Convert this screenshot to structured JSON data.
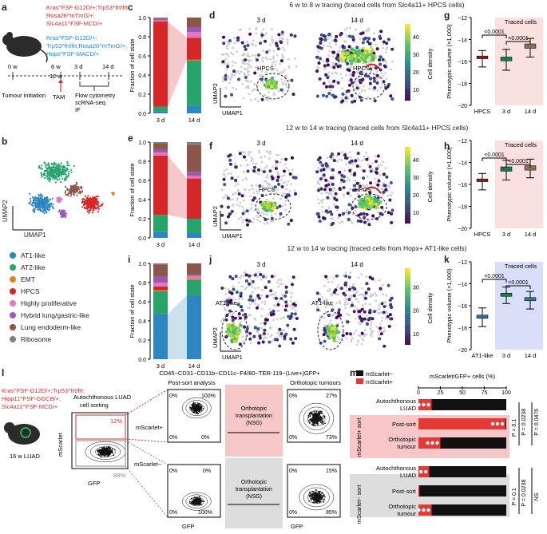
{
  "panel_labels": [
    "a",
    "b",
    "c",
    "d",
    "e",
    "f",
    "g",
    "h",
    "i",
    "j",
    "k",
    "l",
    "m"
  ],
  "panel_a": {
    "group1": [
      "Kras^FSF-G12D/+;Trp53^frt/frt;",
      "Rosa26^mTmG/+;",
      "Slc4a11^FSF-MCD/+"
    ],
    "group2": [
      "Kras^FSF-G12D/+;",
      "Trp53^frt/frt;Rosa26^mTmG/+;",
      "Hopx^FSF-MACD/+"
    ],
    "timeline": [
      "0 w",
      "12 w",
      "6 w",
      "3 d",
      "14 d"
    ],
    "tumour_initiation": "Tumour initiation",
    "tam": "TAM",
    "methods": [
      "Flow cytometry",
      "scRNA-seq",
      "IF"
    ]
  },
  "panel_b": {
    "xlabel": "UMAP1",
    "ylabel": "UMAP2",
    "legend": [
      {
        "label": "AT1-like",
        "color": "#2e86c1"
      },
      {
        "label": "AT2-like",
        "color": "#27a36b"
      },
      {
        "label": "EMT",
        "color": "#e67e22"
      },
      {
        "label": "HPCS",
        "color": "#d62728"
      },
      {
        "label": "Highly proliferative",
        "color": "#e377c2"
      },
      {
        "label": "Hybrid lung/gastric-like",
        "color": "#9b59b6"
      },
      {
        "label": "Lung endoderm-like",
        "color": "#8c564b"
      },
      {
        "label": "Ribosome",
        "color": "#7f7f7f"
      }
    ]
  },
  "row_titles": [
    "6 w to 8 w tracing (traced cells from Slc4a11+ HPCS cells)",
    "12 w to 14 w tracing (traced cells from Slc4a11+ HPCS cells)",
    "12 w to 14 w tracing (traced cells from Hopx+ AT1-like cells)"
  ],
  "umap": {
    "left": "3 d",
    "right": "14 d",
    "xlabel": "UMAP1",
    "ylabel": "UMAP2",
    "hpcs": "HPCS",
    "at1": "AT1-like",
    "colorbar": "Cell density",
    "cb_ticks": [
      "10",
      "20",
      "30",
      "40"
    ],
    "cb_ticks_j": [
      "10",
      "20",
      "30"
    ]
  },
  "chart_data": [
    {
      "type": "bar",
      "panel": "c",
      "categories": [
        "3 d",
        "14 d"
      ],
      "ylabel": "Fraction of cell state",
      "ylim": [
        0,
        1
      ],
      "series": [
        {
          "name": "AT1-like",
          "values": [
            0.02,
            0.08
          ]
        },
        {
          "name": "AT2-like",
          "values": [
            0.05,
            0.47
          ]
        },
        {
          "name": "EMT",
          "values": [
            0.0,
            0.01
          ]
        },
        {
          "name": "HPCS",
          "values": [
            0.89,
            0.23
          ]
        },
        {
          "name": "Highly proliferative",
          "values": [
            0.01,
            0.06
          ]
        },
        {
          "name": "Hybrid lung/gastric-like",
          "values": [
            0.01,
            0.05
          ]
        },
        {
          "name": "Lung endoderm-like",
          "values": [
            0.01,
            0.1
          ]
        },
        {
          "name": "Ribosome",
          "values": [
            0.01,
            0.0
          ]
        }
      ]
    },
    {
      "type": "bar",
      "panel": "e",
      "categories": [
        "3 d",
        "14 d"
      ],
      "ylabel": "Fraction of cell state",
      "ylim": [
        0,
        1
      ],
      "series": [
        {
          "name": "AT1-like",
          "values": [
            0.06,
            0.05
          ]
        },
        {
          "name": "AT2-like",
          "values": [
            0.18,
            0.15
          ]
        },
        {
          "name": "EMT",
          "values": [
            0.0,
            0.0
          ]
        },
        {
          "name": "HPCS",
          "values": [
            0.62,
            0.42
          ]
        },
        {
          "name": "Highly proliferative",
          "values": [
            0.03,
            0.03
          ]
        },
        {
          "name": "Hybrid lung/gastric-like",
          "values": [
            0.03,
            0.04
          ]
        },
        {
          "name": "Lung endoderm-like",
          "values": [
            0.07,
            0.28
          ]
        },
        {
          "name": "Ribosome",
          "values": [
            0.01,
            0.03
          ]
        }
      ]
    },
    {
      "type": "bar",
      "panel": "i",
      "categories": [
        "3 d",
        "14 d"
      ],
      "ylabel": "Fraction of cell state",
      "ylim": [
        0,
        1
      ],
      "series": [
        {
          "name": "AT1-like",
          "values": [
            0.47,
            0.67
          ]
        },
        {
          "name": "AT2-like",
          "values": [
            0.24,
            0.16
          ]
        },
        {
          "name": "EMT",
          "values": [
            0.01,
            0.01
          ]
        },
        {
          "name": "HPCS",
          "values": [
            0.04,
            0.0
          ]
        },
        {
          "name": "Highly proliferative",
          "values": [
            0.04,
            0.03
          ]
        },
        {
          "name": "Hybrid lung/gastric-like",
          "values": [
            0.06,
            0.01
          ]
        },
        {
          "name": "Lung endoderm-like",
          "values": [
            0.13,
            0.12
          ]
        },
        {
          "name": "Ribosome",
          "values": [
            0.01,
            0.0
          ]
        }
      ]
    },
    {
      "type": "box",
      "panel": "g",
      "categories": [
        "HPCS",
        "3 d",
        "14 d"
      ],
      "ylabel": "Phenotypic volume (×1,000)",
      "ylim": [
        -20,
        -12
      ],
      "medians": [
        -15.6,
        -15.8,
        -14.6
      ],
      "q1": [
        -15.75,
        -15.95,
        -14.8
      ],
      "q3": [
        -15.5,
        -15.6,
        -14.4
      ],
      "lo": [
        -16.5,
        -16.8,
        -15.6
      ],
      "hi": [
        -15.0,
        -14.9,
        -13.9
      ],
      "colors": [
        "#8b1a1a",
        "#1a7a4a",
        "#8c6d5a"
      ],
      "sig": [
        {
          "from": 0,
          "to": 1,
          "label": "<0.0001"
        },
        {
          "from": 1,
          "to": 2,
          "label": "<0.0001"
        }
      ],
      "traced_label": "Traced cells"
    },
    {
      "type": "box",
      "panel": "h",
      "categories": [
        "HPCS",
        "3 d",
        "14 d"
      ],
      "ylabel": "Phenotypic volume (×1,000)",
      "ylim": [
        -20,
        -12
      ],
      "medians": [
        -15.6,
        -14.6,
        -14.5
      ],
      "q1": [
        -15.75,
        -14.8,
        -14.7
      ],
      "q3": [
        -15.5,
        -14.4,
        -14.3
      ],
      "lo": [
        -16.5,
        -15.6,
        -15.4
      ],
      "hi": [
        -15.0,
        -13.8,
        -13.7
      ],
      "colors": [
        "#8b1a1a",
        "#1a7a4a",
        "#8c6d5a"
      ],
      "sig": [
        {
          "from": 0,
          "to": 1,
          "label": "<0.0001"
        },
        {
          "from": 1,
          "to": 2,
          "label": "<0.0001"
        }
      ],
      "traced_label": "Traced cells"
    },
    {
      "type": "box",
      "panel": "k",
      "categories": [
        "AT1-like",
        "3 d",
        "14 d"
      ],
      "ylabel": "Phenotypic volume (×1,000)",
      "ylim": [
        -20,
        -12
      ],
      "medians": [
        -17.0,
        -15.0,
        -15.4
      ],
      "q1": [
        -17.15,
        -15.15,
        -15.55
      ],
      "q3": [
        -16.85,
        -14.85,
        -15.25
      ],
      "lo": [
        -17.9,
        -15.8,
        -16.3
      ],
      "hi": [
        -16.2,
        -14.3,
        -14.7
      ],
      "colors": [
        "#2e6fa8",
        "#1a7a4a",
        "#2e7d6a"
      ],
      "sig": [
        {
          "from": 0,
          "to": 1,
          "label": "<0.0001"
        },
        {
          "from": 1,
          "to": 2,
          "label": "<0.0001"
        }
      ],
      "traced_label": "Traced cells"
    },
    {
      "type": "bar",
      "panel": "m",
      "orientation": "horizontal",
      "xlabel": "mScarlet/GFP+ cells (%)",
      "xlim": [
        0,
        100
      ],
      "categories": [
        "Autochthonous LUAD",
        "Post-sort",
        "Orthotopic tumour",
        "Autochthonous LUAD",
        "Post-sort",
        "Orthotopic tumour"
      ],
      "series": [
        {
          "name": "mScarlet−",
          "values": [
            85,
            1,
            75,
            88,
            99,
            85
          ]
        },
        {
          "name": "mScarlet+",
          "values": [
            15,
            99,
            25,
            12,
            1,
            15
          ]
        }
      ],
      "groups": [
        "mScarlet+ sort",
        "mScarlet− sort"
      ],
      "stats": [
        "P = 0.1",
        "P = 0.0238",
        "P = 0.0476",
        "P = 0.1",
        "P = 0.0238",
        "NS"
      ]
    }
  ],
  "panel_l": {
    "header": "CD45−CD31−CD11b−CD11c−F4/80−TER-119−(Live+)GFP+",
    "mouse_lines": [
      "Kras^FSF-G12D/+;Trp53^frt/frt;",
      "Hipp11^FSF-GGCB/+;",
      "Slc4a11^FSF-MCD/+"
    ],
    "mouse_label": "16 w LUAD",
    "sorting": "Autochthonous LUAD cell sorting",
    "postsort": "Post-sort analysis",
    "ortho_title": "Orthotopic tumours",
    "transplant": "Orthotopic transplantation (NSG)",
    "mscar_pos": "mScarlet+",
    "mscar_neg": "mScarlet−",
    "xlabel": "GFP",
    "ylabel": "mScarlet",
    "ticks": [
      "10^2",
      "10^4",
      "10^5"
    ],
    "pct_sort": [
      "12%",
      "88%"
    ],
    "pct_post_pos": [
      "0%",
      "100%",
      "0%",
      "0%"
    ],
    "pct_ortho_pos": [
      "0%",
      "27%",
      "0%",
      "73%"
    ],
    "pct_post_neg": [
      "0%",
      "0%",
      "0%",
      "100%"
    ],
    "pct_ortho_neg": [
      "0%",
      "15%",
      "0%",
      "85%"
    ]
  },
  "panel_m": {
    "legend_neg": "mScarlet−",
    "legend_pos": "mScarlet+",
    "ticks": [
      "0",
      "25",
      "50",
      "75",
      "100"
    ],
    "sort_pos": "mScarlet+ sort",
    "sort_neg": "mScarlet− sort"
  }
}
